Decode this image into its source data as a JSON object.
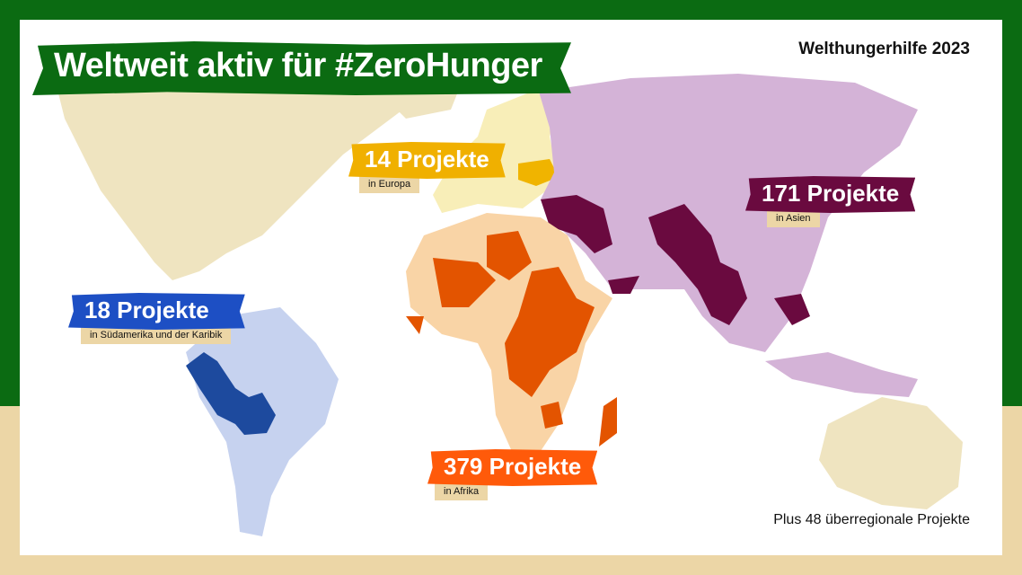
{
  "title": "Weltweit aktiv für #ZeroHunger",
  "brand": "Welthungerhilfe 2023",
  "footnote": "Plus 48 überregionale Projekte",
  "colors": {
    "frame_green": "#0b6b12",
    "frame_beige": "#ecd6a6",
    "land_other": "#efe4c0",
    "europe_light": "#f8eeb8",
    "europe_active": "#f0b400",
    "asia_light": "#d4b3d7",
    "asia_active": "#6a0a3f",
    "africa_light": "#f9d4a6",
    "africa_active": "#e35400",
    "america_light": "#c6d2ef",
    "america_active": "#1d4a9e"
  },
  "regions": [
    {
      "id": "europa",
      "count": "14 Projekte",
      "sub": "in Europa",
      "color": "#f0b000"
    },
    {
      "id": "asien",
      "count": "171 Projekte",
      "sub": "in Asien",
      "color": "#6a0a3f"
    },
    {
      "id": "suedamerika",
      "count": "18 Projekte",
      "sub": "in Südamerika und der Karibik",
      "color": "#1d4fc4"
    },
    {
      "id": "afrika",
      "count": "379 Projekte",
      "sub": "in Afrika",
      "color": "#ff5a0a"
    }
  ]
}
